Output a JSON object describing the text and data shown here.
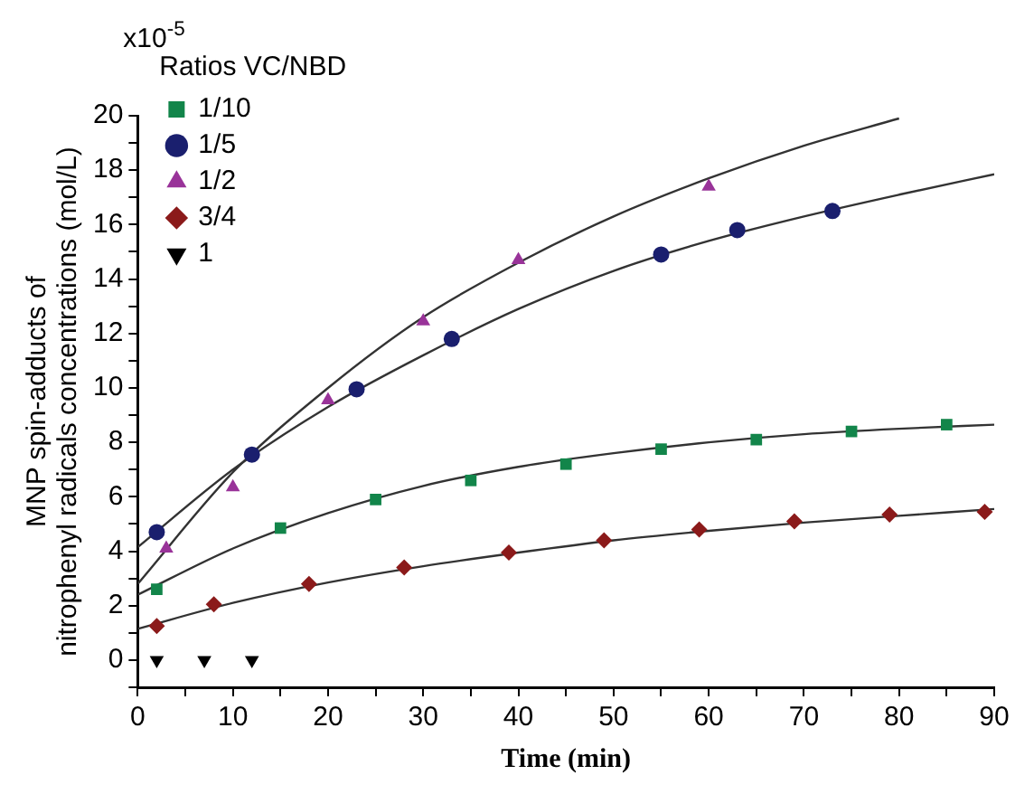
{
  "chart_data": {
    "type": "scatter",
    "xlabel": "Time (min)",
    "ylabel": "MNP spin-adducts of\nnitrophenyl radicals concentrations (mol/L)",
    "legend_title": "Ratios VC/NBD",
    "legend": "top left",
    "grid": false,
    "annotations": [
      "x10$^{-5}$"
    ],
    "xlim": [
      0,
      90
    ],
    "xticks": [
      0,
      {
        "value": 5,
        "label": null
      },
      10,
      {
        "value": 15,
        "label": null
      },
      20,
      {
        "value": 25,
        "label": null
      },
      30,
      {
        "value": 35,
        "label": null
      },
      40,
      {
        "value": 45,
        "label": null
      },
      50,
      {
        "value": 55,
        "label": null
      },
      60,
      {
        "value": 65,
        "label": null
      },
      70,
      {
        "value": 75,
        "label": null
      },
      80,
      {
        "value": 85,
        "label": null
      },
      90
    ],
    "ylim": [
      -1,
      20
    ],
    "yticks": [
      {
        "value": -1,
        "label": null
      },
      0,
      {
        "value": 1,
        "label": null
      },
      2,
      {
        "value": 3,
        "label": null
      },
      4,
      {
        "value": 5,
        "label": null
      },
      6,
      {
        "value": 7,
        "label": null
      },
      8,
      {
        "value": 9,
        "label": null
      },
      10,
      {
        "value": 11,
        "label": null
      },
      12,
      {
        "value": 13,
        "label": null
      },
      14,
      {
        "value": 15,
        "label": null
      },
      16,
      {
        "value": 17,
        "label": null
      },
      18,
      {
        "value": 19,
        "label": null
      },
      20
    ],
    "series": [
      {
        "name": "1/10",
        "type": "scatter",
        "marker": "square",
        "color": "#12854a",
        "x": [
          2,
          15,
          25,
          35,
          45,
          55,
          65,
          75,
          85
        ],
        "values": [
          2.6,
          4.85,
          5.9,
          6.6,
          7.2,
          7.75,
          8.1,
          8.4,
          8.65
        ]
      },
      {
        "name": "1/5",
        "type": "scatter",
        "marker": "circle",
        "color": "#1a1f6e",
        "x": [
          2,
          12,
          23,
          33,
          55,
          63,
          73
        ],
        "values": [
          4.7,
          7.55,
          9.95,
          11.8,
          14.9,
          15.8,
          16.5
        ]
      },
      {
        "name": "1/2",
        "type": "scatter",
        "marker": "triangle",
        "color": "#993399",
        "x": [
          3,
          10,
          20,
          30,
          40,
          60
        ],
        "values": [
          4.1,
          6.35,
          9.55,
          12.45,
          14.7,
          17.4
        ]
      },
      {
        "name": "3/4",
        "type": "scatter",
        "marker": "diamond",
        "color": "#8b1a1a",
        "x": [
          2,
          8,
          18,
          28,
          39,
          49,
          59,
          69,
          79,
          89
        ],
        "values": [
          1.25,
          2.05,
          2.8,
          3.4,
          3.95,
          4.4,
          4.8,
          5.1,
          5.35,
          5.45
        ]
      },
      {
        "name": "1",
        "type": "scatter",
        "marker": "triangle-down",
        "color": "#000000",
        "x": [
          2,
          7,
          12
        ],
        "values": [
          0,
          0,
          0
        ]
      },
      {
        "type": "line",
        "marker": "none",
        "color": "#333333",
        "x": [
          0,
          10,
          20,
          30,
          40,
          50,
          60,
          70,
          80
        ],
        "values": [
          2.8,
          6.9,
          10.0,
          12.6,
          14.6,
          16.3,
          17.7,
          18.9,
          19.9
        ]
      },
      {
        "type": "line",
        "marker": "none",
        "color": "#333333",
        "x": [
          0,
          10,
          20,
          30,
          40,
          50,
          60,
          70,
          80,
          90
        ],
        "values": [
          4.15,
          7.0,
          9.3,
          11.2,
          12.9,
          14.3,
          15.4,
          16.3,
          17.1,
          17.85
        ]
      },
      {
        "type": "line",
        "marker": "none",
        "color": "#333333",
        "x": [
          0,
          10,
          20,
          30,
          40,
          50,
          60,
          70,
          80,
          90
        ],
        "values": [
          2.4,
          4.1,
          5.4,
          6.4,
          7.1,
          7.6,
          8.0,
          8.3,
          8.5,
          8.65
        ]
      },
      {
        "type": "line",
        "marker": "none",
        "color": "#333333",
        "x": [
          0,
          10,
          20,
          30,
          40,
          50,
          60,
          70,
          80,
          90
        ],
        "values": [
          1.15,
          2.1,
          2.85,
          3.45,
          3.95,
          4.4,
          4.75,
          5.05,
          5.3,
          5.55
        ]
      }
    ]
  }
}
